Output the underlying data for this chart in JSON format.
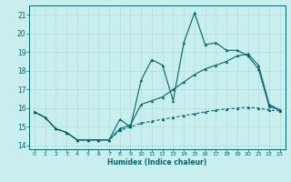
{
  "xlabel": "Humidex (Indice chaleur)",
  "background_color": "#c8eeee",
  "grid_color": "#b0dddd",
  "line_color": "#006666",
  "xlim": [
    -0.5,
    23.5
  ],
  "ylim": [
    13.8,
    21.5
  ],
  "yticks": [
    14,
    15,
    16,
    17,
    18,
    19,
    20,
    21
  ],
  "xticks": [
    0,
    1,
    2,
    3,
    4,
    5,
    6,
    7,
    8,
    9,
    10,
    11,
    12,
    13,
    14,
    15,
    16,
    17,
    18,
    19,
    20,
    21,
    22,
    23
  ],
  "line1_x": [
    0,
    1,
    2,
    3,
    4,
    5,
    6,
    7,
    8,
    9,
    10,
    11,
    12,
    13,
    14,
    15,
    16,
    17,
    18,
    19,
    20,
    21,
    22,
    23
  ],
  "line1_y": [
    15.8,
    15.5,
    14.9,
    14.7,
    14.3,
    14.3,
    14.3,
    14.3,
    15.4,
    15.0,
    17.5,
    18.6,
    18.3,
    16.4,
    19.5,
    21.1,
    19.4,
    19.5,
    19.1,
    19.1,
    18.8,
    18.1,
    16.1,
    15.9
  ],
  "line2_x": [
    0,
    1,
    2,
    3,
    4,
    5,
    6,
    7,
    8,
    9,
    10,
    11,
    12,
    13,
    14,
    15,
    16,
    17,
    18,
    19,
    20,
    21,
    22,
    23
  ],
  "line2_y": [
    15.8,
    15.5,
    14.9,
    14.7,
    14.3,
    14.3,
    14.3,
    14.3,
    14.9,
    15.1,
    16.2,
    16.4,
    16.6,
    17.0,
    17.4,
    17.8,
    18.1,
    18.3,
    18.5,
    18.8,
    18.9,
    18.3,
    16.2,
    15.9
  ],
  "line3_x": [
    0,
    1,
    2,
    3,
    4,
    5,
    6,
    7,
    8,
    9,
    10,
    11,
    12,
    13,
    14,
    15,
    16,
    17,
    18,
    19,
    20,
    21,
    22,
    23
  ],
  "line3_y": [
    15.8,
    15.5,
    14.9,
    14.7,
    14.3,
    14.3,
    14.3,
    14.3,
    14.8,
    15.0,
    15.2,
    15.3,
    15.4,
    15.5,
    15.6,
    15.7,
    15.8,
    15.9,
    15.95,
    16.0,
    16.05,
    16.0,
    15.9,
    15.85
  ]
}
